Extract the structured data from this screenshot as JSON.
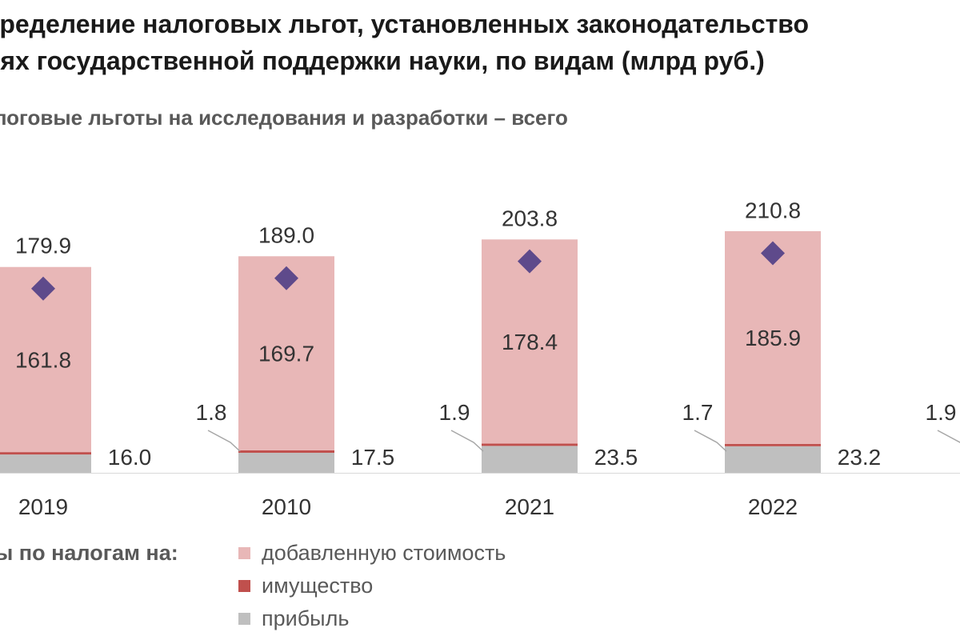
{
  "title": {
    "line1": "пределение налоговых льгот, установленных законодательство",
    "line2": "лях государственной поддержки науки, по видам (млрд руб.)"
  },
  "subtitle": "логовые льготы на исследования и разработки – всего",
  "legend": {
    "title": "ты по налогам на:",
    "items": [
      {
        "label": "добавленную стоимость",
        "color": "#e8b7b7"
      },
      {
        "label": "имущество",
        "color": "#c0504d"
      },
      {
        "label": "прибыль",
        "color": "#bfbfbf"
      }
    ]
  },
  "chart_data": {
    "type": "bar",
    "stacked": true,
    "categories": [
      "2019",
      "2010",
      "2021",
      "2022",
      ""
    ],
    "series": [
      {
        "name": "прибыль",
        "values": [
          16.0,
          17.5,
          23.5,
          23.2,
          null
        ],
        "color": "#bfbfbf"
      },
      {
        "name": "имущество",
        "values": [
          null,
          1.8,
          1.9,
          1.7,
          1.9
        ],
        "color": "#c0504d"
      },
      {
        "name": "добавленную стоимость",
        "values": [
          161.8,
          169.7,
          178.4,
          185.9,
          null
        ],
        "color": "#e8b7b7"
      }
    ],
    "totals": {
      "values": [
        179.9,
        189.0,
        203.8,
        210.8,
        null
      ],
      "marker": "diamond",
      "color": "#5e4a8b"
    },
    "grid": false
  }
}
